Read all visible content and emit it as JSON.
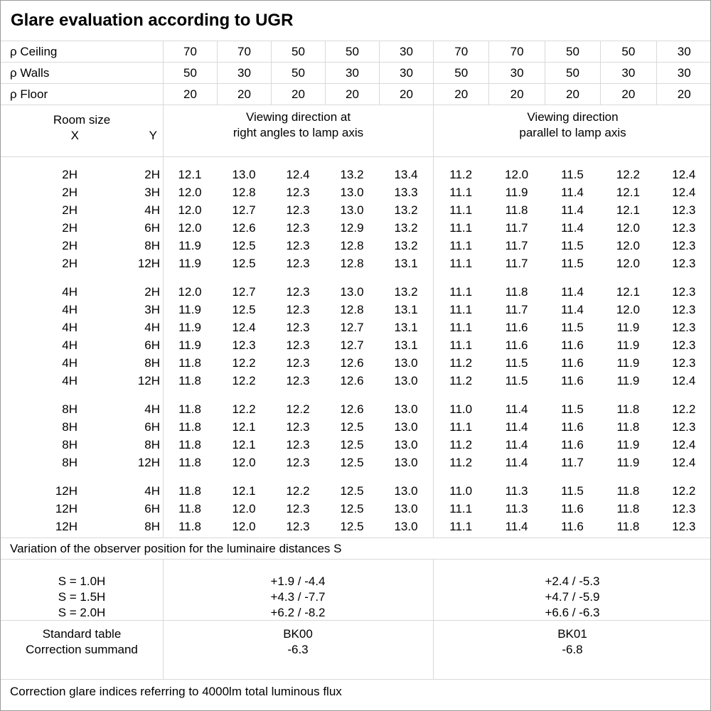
{
  "title": "Glare evaluation according to UGR",
  "colors": {
    "background": "#ffffff",
    "grid_line": "#d9d9d9",
    "outer_border": "#9a9a9a",
    "text": "#000000"
  },
  "reflectance_rows": [
    {
      "label": "ρ Ceiling",
      "values": [
        "70",
        "70",
        "50",
        "50",
        "30",
        "70",
        "70",
        "50",
        "50",
        "30"
      ]
    },
    {
      "label": "ρ Walls",
      "values": [
        "50",
        "30",
        "50",
        "30",
        "30",
        "50",
        "30",
        "50",
        "30",
        "30"
      ]
    },
    {
      "label": "ρ Floor",
      "values": [
        "20",
        "20",
        "20",
        "20",
        "20",
        "20",
        "20",
        "20",
        "20",
        "20"
      ]
    }
  ],
  "room_size_header": {
    "title": "Room size",
    "x_label": "X",
    "y_label": "Y"
  },
  "group_headers": {
    "right_angle": {
      "line1": "Viewing direction at",
      "line2": "right angles to lamp axis"
    },
    "parallel": {
      "line1": "Viewing direction",
      "line2": "parallel to lamp axis"
    }
  },
  "ugr_groups": [
    {
      "rows": [
        {
          "x": "2H",
          "y": "2H",
          "right_angle": [
            "12.1",
            "13.0",
            "12.4",
            "13.2",
            "13.4"
          ],
          "parallel": [
            "11.2",
            "12.0",
            "11.5",
            "12.2",
            "12.4"
          ]
        },
        {
          "x": "2H",
          "y": "3H",
          "right_angle": [
            "12.0",
            "12.8",
            "12.3",
            "13.0",
            "13.3"
          ],
          "parallel": [
            "11.1",
            "11.9",
            "11.4",
            "12.1",
            "12.4"
          ]
        },
        {
          "x": "2H",
          "y": "4H",
          "right_angle": [
            "12.0",
            "12.7",
            "12.3",
            "13.0",
            "13.2"
          ],
          "parallel": [
            "11.1",
            "11.8",
            "11.4",
            "12.1",
            "12.3"
          ]
        },
        {
          "x": "2H",
          "y": "6H",
          "right_angle": [
            "12.0",
            "12.6",
            "12.3",
            "12.9",
            "13.2"
          ],
          "parallel": [
            "11.1",
            "11.7",
            "11.4",
            "12.0",
            "12.3"
          ]
        },
        {
          "x": "2H",
          "y": "8H",
          "right_angle": [
            "11.9",
            "12.5",
            "12.3",
            "12.8",
            "13.2"
          ],
          "parallel": [
            "11.1",
            "11.7",
            "11.5",
            "12.0",
            "12.3"
          ]
        },
        {
          "x": "2H",
          "y": "12H",
          "right_angle": [
            "11.9",
            "12.5",
            "12.3",
            "12.8",
            "13.1"
          ],
          "parallel": [
            "11.1",
            "11.7",
            "11.5",
            "12.0",
            "12.3"
          ]
        }
      ]
    },
    {
      "rows": [
        {
          "x": "4H",
          "y": "2H",
          "right_angle": [
            "12.0",
            "12.7",
            "12.3",
            "13.0",
            "13.2"
          ],
          "parallel": [
            "11.1",
            "11.8",
            "11.4",
            "12.1",
            "12.3"
          ]
        },
        {
          "x": "4H",
          "y": "3H",
          "right_angle": [
            "11.9",
            "12.5",
            "12.3",
            "12.8",
            "13.1"
          ],
          "parallel": [
            "11.1",
            "11.7",
            "11.4",
            "12.0",
            "12.3"
          ]
        },
        {
          "x": "4H",
          "y": "4H",
          "right_angle": [
            "11.9",
            "12.4",
            "12.3",
            "12.7",
            "13.1"
          ],
          "parallel": [
            "11.1",
            "11.6",
            "11.5",
            "11.9",
            "12.3"
          ]
        },
        {
          "x": "4H",
          "y": "6H",
          "right_angle": [
            "11.9",
            "12.3",
            "12.3",
            "12.7",
            "13.1"
          ],
          "parallel": [
            "11.1",
            "11.6",
            "11.6",
            "11.9",
            "12.3"
          ]
        },
        {
          "x": "4H",
          "y": "8H",
          "right_angle": [
            "11.8",
            "12.2",
            "12.3",
            "12.6",
            "13.0"
          ],
          "parallel": [
            "11.2",
            "11.5",
            "11.6",
            "11.9",
            "12.3"
          ]
        },
        {
          "x": "4H",
          "y": "12H",
          "right_angle": [
            "11.8",
            "12.2",
            "12.3",
            "12.6",
            "13.0"
          ],
          "parallel": [
            "11.2",
            "11.5",
            "11.6",
            "11.9",
            "12.4"
          ]
        }
      ]
    },
    {
      "rows": [
        {
          "x": "8H",
          "y": "4H",
          "right_angle": [
            "11.8",
            "12.2",
            "12.2",
            "12.6",
            "13.0"
          ],
          "parallel": [
            "11.0",
            "11.4",
            "11.5",
            "11.8",
            "12.2"
          ]
        },
        {
          "x": "8H",
          "y": "6H",
          "right_angle": [
            "11.8",
            "12.1",
            "12.3",
            "12.5",
            "13.0"
          ],
          "parallel": [
            "11.1",
            "11.4",
            "11.6",
            "11.8",
            "12.3"
          ]
        },
        {
          "x": "8H",
          "y": "8H",
          "right_angle": [
            "11.8",
            "12.1",
            "12.3",
            "12.5",
            "13.0"
          ],
          "parallel": [
            "11.2",
            "11.4",
            "11.6",
            "11.9",
            "12.4"
          ]
        },
        {
          "x": "8H",
          "y": "12H",
          "right_angle": [
            "11.8",
            "12.0",
            "12.3",
            "12.5",
            "13.0"
          ],
          "parallel": [
            "11.2",
            "11.4",
            "11.7",
            "11.9",
            "12.4"
          ]
        }
      ]
    },
    {
      "rows": [
        {
          "x": "12H",
          "y": "4H",
          "right_angle": [
            "11.8",
            "12.1",
            "12.2",
            "12.5",
            "13.0"
          ],
          "parallel": [
            "11.0",
            "11.3",
            "11.5",
            "11.8",
            "12.2"
          ]
        },
        {
          "x": "12H",
          "y": "6H",
          "right_angle": [
            "11.8",
            "12.0",
            "12.3",
            "12.5",
            "13.0"
          ],
          "parallel": [
            "11.1",
            "11.3",
            "11.6",
            "11.8",
            "12.3"
          ]
        },
        {
          "x": "12H",
          "y": "8H",
          "right_angle": [
            "11.8",
            "12.0",
            "12.3",
            "12.5",
            "13.0"
          ],
          "parallel": [
            "11.1",
            "11.4",
            "11.6",
            "11.8",
            "12.3"
          ]
        }
      ]
    }
  ],
  "variation_note": "Variation of the observer position for the luminaire distances S",
  "variation_rows": [
    {
      "label": "S = 1.0H",
      "right_angle": "+1.9 / -4.4",
      "parallel": "+2.4 / -5.3"
    },
    {
      "label": "S = 1.5H",
      "right_angle": "+4.3 / -7.7",
      "parallel": "+4.7 / -5.9"
    },
    {
      "label": "S = 2.0H",
      "right_angle": "+6.2 / -8.2",
      "parallel": "+6.6 / -6.3"
    }
  ],
  "standard_table": {
    "label": "Standard table",
    "right_angle": "BK00",
    "parallel": "BK01"
  },
  "correction_summand": {
    "label": "Correction summand",
    "right_angle": "-6.3",
    "parallel": "-6.8"
  },
  "footer": "Correction glare indices referring to 4000lm total luminous flux"
}
